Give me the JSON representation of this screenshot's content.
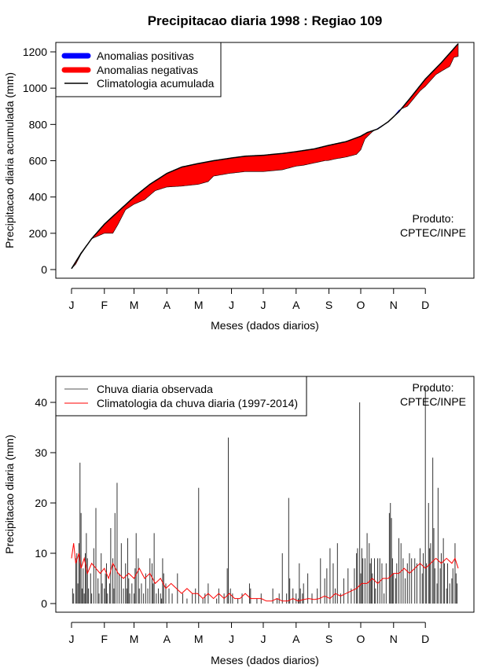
{
  "chart_data": [
    {
      "type": "area",
      "title": "Precipitacao diaria 1998 : Regiao 109",
      "xlabel": "Meses (dados diarios)",
      "ylabel": "Precipitacao diaria acumulada (mm)",
      "xlim": [
        1,
        366
      ],
      "ylim": [
        0,
        1250
      ],
      "month_labels": [
        "J",
        "F",
        "M",
        "A",
        "M",
        "J",
        "J",
        "A",
        "S",
        "O",
        "N",
        "D"
      ],
      "month_days": [
        1,
        32,
        60,
        91,
        121,
        152,
        182,
        213,
        244,
        274,
        305,
        335
      ],
      "yticks": [
        0,
        200,
        400,
        600,
        800,
        1000,
        1200
      ],
      "legend": [
        {
          "label": "Anomalias positivas",
          "color": "#0000ff",
          "style": "thick"
        },
        {
          "label": "Anomalias negativas",
          "color": "#ff0000",
          "style": "thick"
        },
        {
          "label": "Climatologia acumulada",
          "color": "#000000",
          "style": "line"
        }
      ],
      "annotation": [
        "Produto:",
        "CPTEC/INPE"
      ],
      "colors": {
        "positive": "#0000ff",
        "negative": "#ff0000",
        "climatology": "#000000"
      },
      "climatology_accumulated": {
        "day": [
          1,
          10,
          20,
          32,
          45,
          60,
          75,
          91,
          105,
          121,
          135,
          152,
          165,
          182,
          200,
          213,
          230,
          244,
          260,
          274,
          280,
          290,
          300,
          310,
          320,
          335,
          350,
          366
        ],
        "value": [
          5,
          90,
          170,
          250,
          320,
          400,
          470,
          530,
          565,
          585,
          600,
          615,
          625,
          630,
          640,
          650,
          665,
          685,
          705,
          735,
          755,
          775,
          815,
          870,
          940,
          1050,
          1140,
          1245
        ]
      },
      "observed_accumulated": {
        "day": [
          1,
          5,
          10,
          20,
          32,
          40,
          45,
          52,
          60,
          62,
          70,
          80,
          91,
          105,
          121,
          130,
          135,
          150,
          165,
          182,
          200,
          213,
          220,
          240,
          244,
          250,
          260,
          270,
          274,
          278,
          285,
          290,
          297,
          303,
          310,
          318,
          323,
          330,
          335,
          345,
          352,
          358,
          362,
          366
        ],
        "value": [
          5,
          30,
          85,
          170,
          200,
          200,
          250,
          330,
          360,
          365,
          385,
          435,
          455,
          460,
          470,
          485,
          515,
          530,
          540,
          540,
          550,
          570,
          575,
          600,
          602,
          610,
          620,
          635,
          660,
          720,
          760,
          780,
          805,
          830,
          880,
          900,
          935,
          985,
          1010,
          1075,
          1100,
          1120,
          1170,
          1175
        ]
      }
    },
    {
      "type": "bar",
      "title": "",
      "xlabel": "Meses (dados diarios)",
      "ylabel": "Precipitacao diaria (mm)",
      "xlim": [
        1,
        366
      ],
      "ylim": [
        0,
        42
      ],
      "month_labels": [
        "J",
        "F",
        "M",
        "A",
        "M",
        "J",
        "J",
        "A",
        "S",
        "O",
        "N",
        "D"
      ],
      "month_days": [
        1,
        32,
        60,
        91,
        121,
        152,
        182,
        213,
        244,
        274,
        305,
        335
      ],
      "yticks": [
        0,
        10,
        20,
        30,
        40
      ],
      "legend": [
        {
          "label": "Chuva diaria observada",
          "color": "#555555",
          "style": "line"
        },
        {
          "label": "Climatologia da chuva diaria (1997-2014)",
          "color": "#ff0000",
          "style": "line"
        }
      ],
      "annotation": [
        "Produto:",
        "CPTEC/INPE"
      ],
      "colors": {
        "observed": "#333333",
        "climatology": "#ff0000"
      },
      "observed_daily": {
        "day": [
          2,
          3,
          5,
          6,
          7,
          8,
          9,
          10,
          11,
          12,
          13,
          14,
          15,
          16,
          17,
          19,
          20,
          22,
          24,
          26,
          27,
          29,
          30,
          32,
          33,
          34,
          35,
          37,
          38,
          40,
          41,
          42,
          44,
          46,
          48,
          50,
          52,
          53,
          54,
          55,
          56,
          58,
          60,
          61,
          62,
          64,
          65,
          67,
          69,
          71,
          73,
          75,
          77,
          78,
          79,
          81,
          83,
          85,
          86,
          87,
          88,
          90,
          93,
          96,
          101,
          106,
          110,
          115,
          118,
          121,
          125,
          127,
          130,
          138,
          140,
          145,
          148,
          149,
          151,
          153,
          158,
          162,
          169,
          170,
          176,
          180,
          191,
          195,
          197,
          200,
          204,
          206,
          207,
          210,
          213,
          215,
          216,
          217,
          219,
          220,
          224,
          228,
          233,
          236,
          240,
          242,
          245,
          248,
          250,
          252,
          255,
          258,
          262,
          265,
          268,
          270,
          271,
          273,
          274,
          275,
          276,
          278,
          280,
          282,
          283,
          284,
          285,
          287,
          288,
          290,
          292,
          294,
          296,
          298,
          301,
          302,
          303,
          304,
          305,
          307,
          308,
          310,
          312,
          314,
          316,
          318,
          320,
          322,
          325,
          327,
          330,
          332,
          333,
          335,
          336,
          338,
          339,
          340,
          342,
          343,
          344,
          346,
          347,
          349,
          350,
          352,
          353,
          355,
          356,
          358,
          360,
          361,
          363,
          364,
          365
        ],
        "value": [
          3,
          2,
          9,
          10,
          4,
          12,
          28,
          18,
          3,
          7,
          2,
          10,
          14,
          9,
          3,
          6,
          2,
          11,
          19,
          5,
          2,
          10,
          4,
          3,
          6,
          8,
          2,
          4,
          15,
          9,
          3,
          18,
          24,
          6,
          12,
          3,
          8,
          3,
          13,
          5,
          2,
          4,
          2,
          7,
          14,
          9,
          3,
          4,
          2,
          6,
          3,
          9,
          8,
          4,
          14,
          2,
          3,
          2,
          1,
          9,
          6,
          4,
          3,
          2,
          6,
          2,
          1,
          2,
          3,
          23,
          1,
          2,
          4,
          1,
          3,
          2,
          7,
          33,
          3,
          2,
          1,
          2,
          4,
          3,
          1,
          2,
          3,
          1,
          2,
          10,
          2,
          21,
          5,
          3,
          2,
          1,
          8,
          3,
          2,
          4,
          6,
          2,
          3,
          9,
          5,
          7,
          11,
          8,
          3,
          12,
          2,
          5,
          7,
          3,
          7,
          10,
          11,
          40,
          6,
          11,
          9,
          9,
          14,
          12,
          8,
          9,
          6,
          9,
          3,
          9,
          9,
          8,
          2,
          8,
          18,
          20,
          17,
          9,
          6,
          5,
          8,
          13,
          12,
          9,
          5,
          8,
          10,
          9,
          9,
          8,
          11,
          6,
          10,
          43,
          8,
          20,
          11,
          12,
          29,
          15,
          7,
          4,
          23,
          7,
          10,
          13,
          8,
          3,
          8,
          4,
          5,
          7,
          12,
          6,
          4
        ]
      },
      "climatology_daily": {
        "day": [
          1,
          3,
          5,
          8,
          10,
          13,
          16,
          20,
          24,
          28,
          32,
          36,
          40,
          45,
          50,
          55,
          60,
          65,
          70,
          75,
          80,
          85,
          90,
          95,
          100,
          105,
          110,
          115,
          120,
          125,
          130,
          135,
          140,
          145,
          150,
          155,
          160,
          165,
          170,
          175,
          180,
          185,
          190,
          195,
          200,
          205,
          210,
          215,
          220,
          225,
          230,
          235,
          240,
          245,
          250,
          255,
          260,
          265,
          270,
          275,
          280,
          285,
          290,
          295,
          300,
          305,
          310,
          315,
          320,
          325,
          330,
          335,
          340,
          345,
          350,
          355,
          360,
          363,
          366
        ],
        "value": [
          9,
          12,
          8,
          10,
          7,
          9,
          6,
          8,
          7,
          6,
          7,
          5,
          8,
          6,
          5,
          6,
          5,
          7,
          5,
          6,
          4,
          5,
          3,
          4,
          3,
          2,
          3,
          2,
          2,
          1,
          2,
          1,
          2,
          1,
          2,
          1,
          1,
          2,
          1,
          1,
          1,
          0.5,
          0.5,
          1,
          0.5,
          0.5,
          1,
          0.5,
          0.8,
          1,
          0.8,
          1,
          1.5,
          1,
          2,
          1.5,
          2,
          2.5,
          3,
          4,
          4,
          5,
          4,
          5,
          5,
          6,
          6,
          7,
          6,
          7,
          8,
          7,
          8,
          9,
          8,
          9,
          8,
          9,
          7
        ]
      }
    }
  ]
}
